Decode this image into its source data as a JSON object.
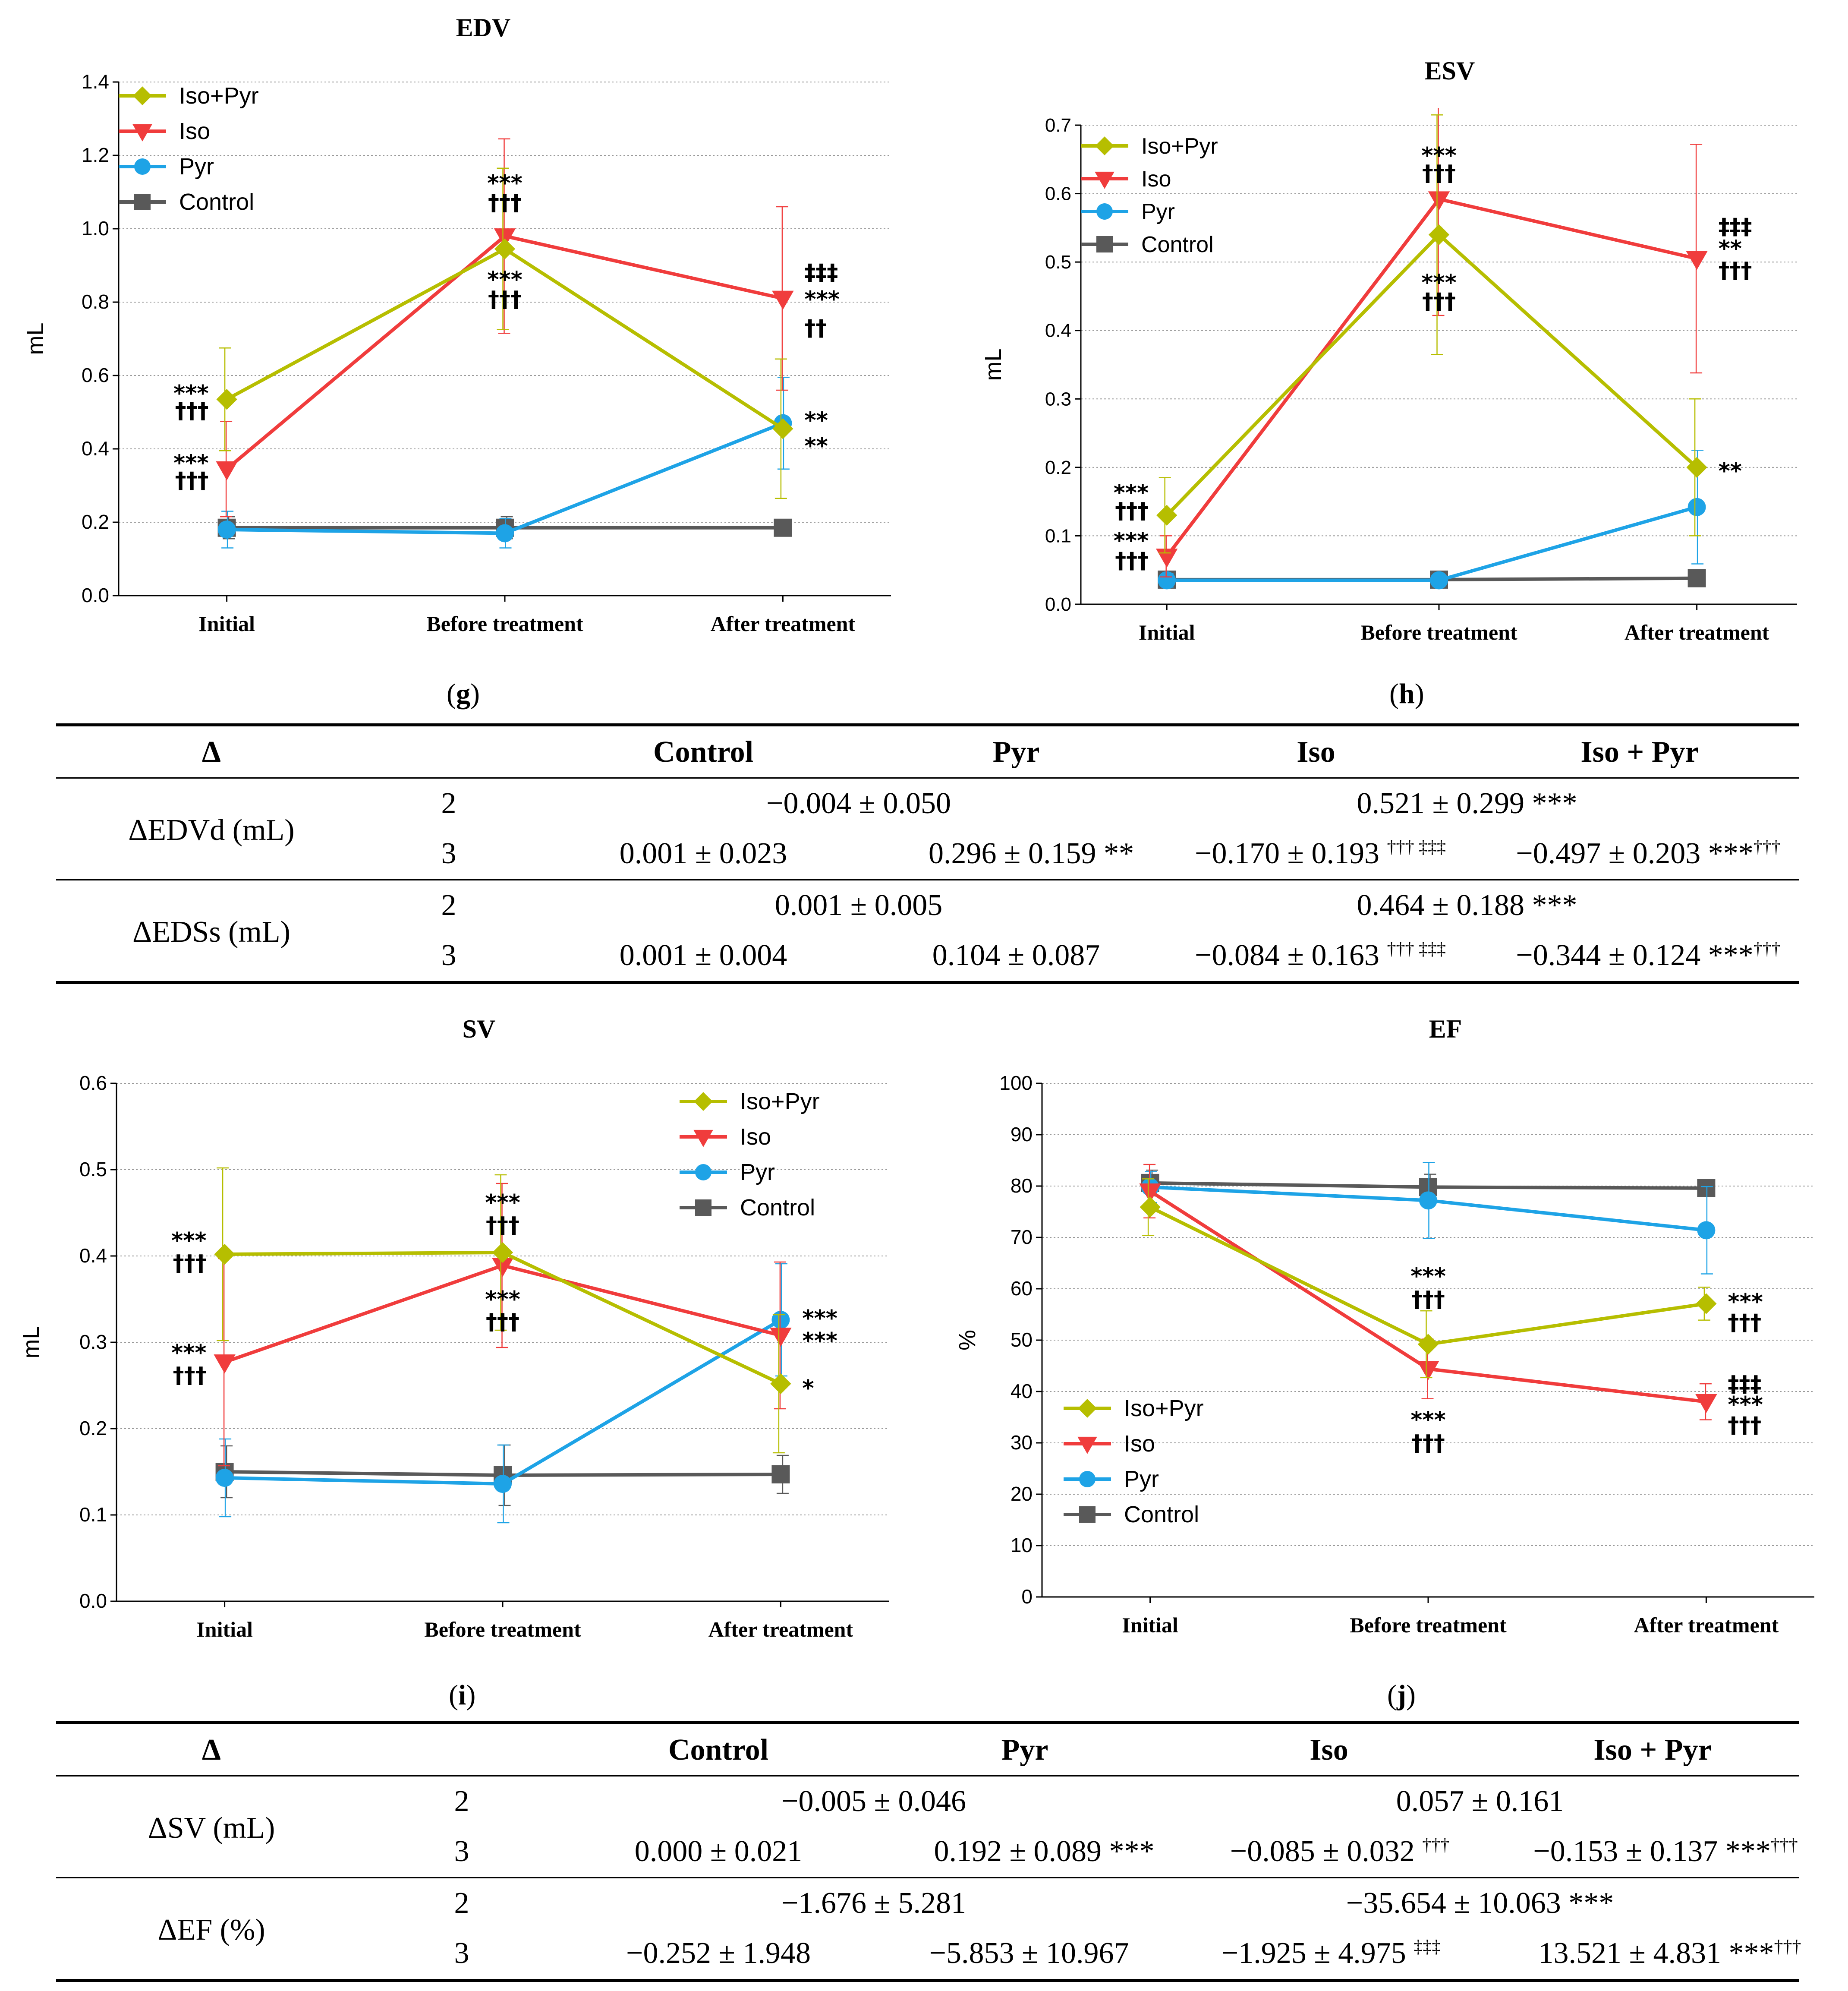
{
  "charts": [
    {
      "id": "g",
      "panel_label": "g",
      "title": "EDV",
      "ylabel": "mL",
      "ylim": [
        0,
        1.4
      ],
      "yticks": [
        "0.0",
        "0.2",
        "0.4",
        "0.6",
        "0.8",
        "1.0",
        "1.2",
        "1.4"
      ],
      "categories": [
        "Initial",
        "Before treatment",
        "After treatment"
      ],
      "legend": [
        "Iso+Pyr",
        "Iso",
        "Pyr",
        "Control"
      ],
      "annotations": [
        {
          "text": "***",
          "x": 0,
          "y": 0.552,
          "side": "left"
        },
        {
          "text": "†††",
          "x": 0,
          "y": 0.505,
          "side": "left"
        },
        {
          "text": "***",
          "x": 0,
          "y": 0.362,
          "side": "left"
        },
        {
          "text": "†††",
          "x": 0,
          "y": 0.315,
          "side": "left"
        },
        {
          "text": "***",
          "x": 1,
          "y": 1.125,
          "side": "center"
        },
        {
          "text": "†††",
          "x": 1,
          "y": 1.072,
          "side": "center"
        },
        {
          "text": "***",
          "x": 1,
          "y": 0.862,
          "side": "center"
        },
        {
          "text": "†††",
          "x": 1,
          "y": 0.808,
          "side": "center"
        },
        {
          "text": "‡‡‡",
          "x": 2,
          "y": 0.882,
          "side": "right"
        },
        {
          "text": "***",
          "x": 2,
          "y": 0.808,
          "side": "right"
        },
        {
          "text": "††",
          "x": 2,
          "y": 0.73,
          "side": "right"
        },
        {
          "text": "**",
          "x": 2,
          "y": 0.478,
          "side": "right"
        },
        {
          "text": "**",
          "x": 2,
          "y": 0.408,
          "side": "right"
        }
      ]
    },
    {
      "id": "h",
      "panel_label": "h",
      "title": "ESV",
      "ylabel": "mL",
      "ylim": [
        0,
        0.7
      ],
      "yticks": [
        "0.0",
        "0.1",
        "0.2",
        "0.3",
        "0.4",
        "0.5",
        "0.6",
        "0.7"
      ],
      "categories": [
        "Initial",
        "Before treatment",
        "After treatment"
      ],
      "legend": [
        "Iso+Pyr",
        "Iso",
        "Pyr",
        "Control"
      ],
      "annotations": [
        {
          "text": "***",
          "x": 0,
          "y": 0.163,
          "side": "left"
        },
        {
          "text": "†††",
          "x": 0,
          "y": 0.137,
          "side": "left"
        },
        {
          "text": "***",
          "x": 0,
          "y": 0.093,
          "side": "left"
        },
        {
          "text": "†††",
          "x": 0,
          "y": 0.064,
          "side": "left"
        },
        {
          "text": "***",
          "x": 1,
          "y": 0.656,
          "side": "center"
        },
        {
          "text": "†††",
          "x": 1,
          "y": 0.63,
          "side": "center"
        },
        {
          "text": "***",
          "x": 1,
          "y": 0.47,
          "side": "center"
        },
        {
          "text": "†††",
          "x": 1,
          "y": 0.443,
          "side": "center"
        },
        {
          "text": "‡‡‡",
          "x": 2,
          "y": 0.552,
          "side": "right"
        },
        {
          "text": "**",
          "x": 2,
          "y": 0.52,
          "side": "right"
        },
        {
          "text": "†††",
          "x": 2,
          "y": 0.488,
          "side": "right"
        },
        {
          "text": "**",
          "x": 2,
          "y": 0.195,
          "side": "right"
        }
      ]
    },
    {
      "id": "i",
      "panel_label": "i",
      "title": "SV",
      "ylabel": "mL",
      "ylim": [
        0,
        0.6
      ],
      "yticks": [
        "0.0",
        "0.1",
        "0.2",
        "0.3",
        "0.4",
        "0.5",
        "0.6"
      ],
      "categories": [
        "Initial",
        "Before treatment",
        "After treatment"
      ],
      "legend": [
        "Iso+Pyr",
        "Iso",
        "Pyr",
        "Control"
      ],
      "annotations": [
        {
          "text": "***",
          "x": 0,
          "y": 0.418,
          "side": "left"
        },
        {
          "text": "†††",
          "x": 0,
          "y": 0.392,
          "side": "left"
        },
        {
          "text": "***",
          "x": 0,
          "y": 0.288,
          "side": "left"
        },
        {
          "text": "†††",
          "x": 0,
          "y": 0.262,
          "side": "left"
        },
        {
          "text": "***",
          "x": 1,
          "y": 0.462,
          "side": "center"
        },
        {
          "text": "†††",
          "x": 1,
          "y": 0.436,
          "side": "center"
        },
        {
          "text": "***",
          "x": 1,
          "y": 0.35,
          "side": "center"
        },
        {
          "text": "†††",
          "x": 1,
          "y": 0.324,
          "side": "center"
        },
        {
          "text": "***",
          "x": 2,
          "y": 0.328,
          "side": "right"
        },
        {
          "text": "***",
          "x": 2,
          "y": 0.302,
          "side": "right"
        },
        {
          "text": "*",
          "x": 2,
          "y": 0.247,
          "side": "right"
        }
      ]
    },
    {
      "id": "j",
      "panel_label": "j",
      "title": "EF",
      "ylabel": "%",
      "ylim": [
        0,
        100
      ],
      "yticks": [
        "0",
        "10",
        "20",
        "30",
        "40",
        "50",
        "60",
        "70",
        "80",
        "90",
        "100"
      ],
      "categories": [
        "Initial",
        "Before treatment",
        "After treatment"
      ],
      "legend": [
        "Iso+Pyr",
        "Iso",
        "Pyr",
        "Control"
      ],
      "annotations": [
        {
          "text": "***",
          "x": 1,
          "y": 62.5,
          "side": "center"
        },
        {
          "text": "†††",
          "x": 1,
          "y": 58,
          "side": "center"
        },
        {
          "text": "***",
          "x": 1,
          "y": 34.5,
          "side": "center"
        },
        {
          "text": "†††",
          "x": 1,
          "y": 30,
          "side": "center"
        },
        {
          "text": "***",
          "x": 2,
          "y": 57.5,
          "side": "right"
        },
        {
          "text": "†††",
          "x": 2,
          "y": 53.5,
          "side": "right"
        },
        {
          "text": "‡‡‡",
          "x": 2,
          "y": 41.5,
          "side": "right"
        },
        {
          "text": "***",
          "x": 2,
          "y": 37.5,
          "side": "right"
        },
        {
          "text": "†††",
          "x": 2,
          "y": 33.5,
          "side": "right"
        }
      ]
    }
  ],
  "chart_data": [
    {
      "type": "line",
      "title": "EDV",
      "xlabel": "",
      "ylabel": "mL",
      "ylim": [
        0,
        1.4
      ],
      "categories": [
        "Initial",
        "Before treatment",
        "After treatment"
      ],
      "series": [
        {
          "name": "Iso+Pyr",
          "color": "#b6be00",
          "marker": "diamond",
          "values": [
            0.535,
            0.945,
            0.455
          ],
          "errors": [
            0.14,
            0.22,
            0.19
          ]
        },
        {
          "name": "Iso",
          "color": "#f03c3c",
          "marker": "triangle-down",
          "values": [
            0.345,
            0.98,
            0.81
          ],
          "errors": [
            0.13,
            0.265,
            0.25
          ]
        },
        {
          "name": "Pyr",
          "color": "#1ea3e6",
          "marker": "circle",
          "values": [
            0.18,
            0.17,
            0.47
          ],
          "errors": [
            0.05,
            0.04,
            0.125
          ]
        },
        {
          "name": "Control",
          "color": "#595959",
          "marker": "square",
          "values": [
            0.185,
            0.185,
            0.185
          ],
          "errors": [
            0.03,
            0.03,
            0.02
          ]
        }
      ]
    },
    {
      "type": "line",
      "title": "ESV",
      "xlabel": "",
      "ylabel": "mL",
      "ylim": [
        0,
        0.7
      ],
      "categories": [
        "Initial",
        "Before treatment",
        "After treatment"
      ],
      "series": [
        {
          "name": "Iso+Pyr",
          "color": "#b6be00",
          "marker": "diamond",
          "values": [
            0.13,
            0.54,
            0.2
          ],
          "errors": [
            0.055,
            0.175,
            0.1
          ]
        },
        {
          "name": "Iso",
          "color": "#f03c3c",
          "marker": "triangle-down",
          "values": [
            0.07,
            0.592,
            0.505
          ],
          "errors": [
            0.03,
            0.17,
            0.167
          ]
        },
        {
          "name": "Pyr",
          "color": "#1ea3e6",
          "marker": "circle",
          "values": [
            0.035,
            0.035,
            0.142
          ],
          "errors": [
            0.01,
            0.006,
            0.083
          ]
        },
        {
          "name": "Control",
          "color": "#595959",
          "marker": "square",
          "values": [
            0.036,
            0.036,
            0.038
          ],
          "errors": [
            0.006,
            0.006,
            0.006
          ]
        }
      ]
    },
    {
      "type": "line",
      "title": "SV",
      "xlabel": "",
      "ylabel": "mL",
      "ylim": [
        0,
        0.6
      ],
      "categories": [
        "Initial",
        "Before treatment",
        "After treatment"
      ],
      "series": [
        {
          "name": "Iso+Pyr",
          "color": "#b6be00",
          "marker": "diamond",
          "values": [
            0.402,
            0.404,
            0.252
          ],
          "errors": [
            0.1,
            0.09,
            0.08
          ]
        },
        {
          "name": "Iso",
          "color": "#f03c3c",
          "marker": "triangle-down",
          "values": [
            0.277,
            0.389,
            0.308
          ],
          "errors": [
            0.12,
            0.095,
            0.085
          ]
        },
        {
          "name": "Pyr",
          "color": "#1ea3e6",
          "marker": "circle",
          "values": [
            0.143,
            0.136,
            0.326
          ],
          "errors": [
            0.045,
            0.045,
            0.065
          ]
        },
        {
          "name": "Control",
          "color": "#595959",
          "marker": "square",
          "values": [
            0.15,
            0.146,
            0.147
          ],
          "errors": [
            0.03,
            0.035,
            0.022
          ]
        }
      ]
    },
    {
      "type": "line",
      "title": "EF",
      "xlabel": "",
      "ylabel": "%",
      "ylim": [
        0,
        100
      ],
      "categories": [
        "Initial",
        "Before treatment",
        "After treatment"
      ],
      "series": [
        {
          "name": "Iso+Pyr",
          "color": "#b6be00",
          "marker": "diamond",
          "values": [
            75.9,
            49.2,
            57.1
          ],
          "errors": [
            5.5,
            6.5,
            3.2
          ]
        },
        {
          "name": "Iso",
          "color": "#f03c3c",
          "marker": "triangle-down",
          "values": [
            79,
            44.4,
            38
          ],
          "errors": [
            5.2,
            5.8,
            3.5
          ]
        },
        {
          "name": "Pyr",
          "color": "#1ea3e6",
          "marker": "circle",
          "values": [
            79.8,
            77.2,
            71.4
          ],
          "errors": [
            3,
            7.4,
            8.5
          ]
        },
        {
          "name": "Control",
          "color": "#595959",
          "marker": "square",
          "values": [
            80.6,
            79.8,
            79.6
          ],
          "errors": [
            2.5,
            2.5,
            1.5
          ]
        }
      ]
    }
  ],
  "tables": {
    "t1": {
      "delta": "Δ",
      "headers": {
        "control": "Control",
        "pyr": "Pyr",
        "iso": "Iso",
        "isopyr": "Iso + Pyr"
      },
      "groups": [
        {
          "label": "ΔEDVd (mL)",
          "r2": {
            "n": "2",
            "left": "−0.004 ± 0.050",
            "right": "0.521 ± 0.299",
            "right_sig": "***"
          },
          "r3": {
            "n": "3",
            "control": "0.001 ± 0.023",
            "pyr": "0.296 ± 0.159",
            "pyr_sig": "**",
            "pyr_sup": "",
            "iso": "−0.170 ± 0.193",
            "iso_sig": "",
            "iso_sup": "††† ‡‡‡",
            "isopyr": "−0.497 ± 0.203",
            "isopyr_sig": "***",
            "isopyr_sup": "†††"
          }
        },
        {
          "label": "ΔEDSs (mL)",
          "r2": {
            "n": "2",
            "left": "0.001 ± 0.005",
            "right": "0.464 ± 0.188",
            "right_sig": "***"
          },
          "r3": {
            "n": "3",
            "control": "0.001 ± 0.004",
            "pyr": "0.104 ± 0.087",
            "pyr_sig": "",
            "pyr_sup": "",
            "iso": "−0.084 ± 0.163",
            "iso_sig": "",
            "iso_sup": "††† ‡‡‡",
            "isopyr": "−0.344 ± 0.124",
            "isopyr_sig": "***",
            "isopyr_sup": "†††"
          }
        }
      ]
    },
    "t2": {
      "delta": "Δ",
      "headers": {
        "control": "Control",
        "pyr": "Pyr",
        "iso": "Iso",
        "isopyr": "Iso + Pyr"
      },
      "groups": [
        {
          "label": "ΔSV (mL)",
          "r2": {
            "n": "2",
            "left": "−0.005 ± 0.046",
            "right": "0.057 ± 0.161",
            "right_sig": ""
          },
          "r3": {
            "n": "3",
            "control": "0.000 ± 0.021",
            "pyr": "0.192 ± 0.089",
            "pyr_sig": "***",
            "pyr_sup": "",
            "iso": "−0.085 ± 0.032",
            "iso_sig": "",
            "iso_sup": "†††",
            "isopyr": "−0.153 ± 0.137",
            "isopyr_sig": "***",
            "isopyr_sup": "†††"
          }
        },
        {
          "label": "ΔEF (%)",
          "r2": {
            "n": "2",
            "left": "−1.676 ± 5.281",
            "right": "−35.654 ± 10.063",
            "right_sig": "***"
          },
          "r3": {
            "n": "3",
            "control": "−0.252 ± 1.948",
            "pyr": "−5.853 ± 10.967",
            "pyr_sig": "",
            "pyr_sup": "",
            "iso": "−1.925 ± 4.975",
            "iso_sig": "",
            "iso_sup": "‡‡‡",
            "isopyr": "13.521 ± 4.831",
            "isopyr_sig": "***",
            "isopyr_sup": "†††"
          }
        }
      ]
    }
  }
}
